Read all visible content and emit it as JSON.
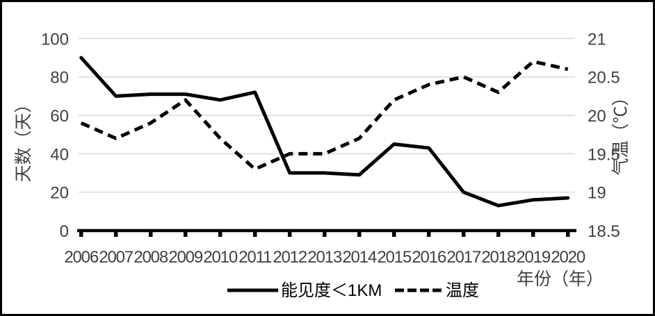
{
  "chart_data": {
    "type": "line",
    "title": "",
    "x_labels": [
      "2006",
      "2007",
      "2008",
      "2009",
      "2010",
      "2011",
      "2012",
      "2013",
      "2014",
      "2015",
      "2016",
      "2017",
      "2018",
      "2019",
      "2020"
    ],
    "series": [
      {
        "name": "能见度＜1KM",
        "axis": "left",
        "style": "solid",
        "values": [
          90,
          70,
          71,
          71,
          68,
          72,
          30,
          30,
          29,
          45,
          43,
          20,
          13,
          16,
          17
        ]
      },
      {
        "name": "温度",
        "axis": "right",
        "style": "dashed",
        "values": [
          19.9,
          19.7,
          19.9,
          20.2,
          19.7,
          19.3,
          19.5,
          19.5,
          19.7,
          20.2,
          20.4,
          20.5,
          20.3,
          20.7,
          20.6
        ]
      }
    ],
    "left_axis": {
      "title": "天数（天）",
      "min": 0,
      "max": 100,
      "tick_labels": [
        "0",
        "20",
        "40",
        "60",
        "80",
        "100"
      ]
    },
    "right_axis": {
      "title": "气温（℃）",
      "min": 18.5,
      "max": 21,
      "tick_labels": [
        "18.5",
        "19",
        "19.5",
        "20",
        "20.5",
        "21"
      ]
    },
    "x_axis": {
      "title": "年份（年）"
    },
    "legend_position": "bottom",
    "grid": true,
    "colors": {
      "line": "#000000",
      "grid": "#d9d9d9",
      "tick_label": "#404040",
      "axis_title": "#404040",
      "frame_border": "#000000"
    }
  }
}
